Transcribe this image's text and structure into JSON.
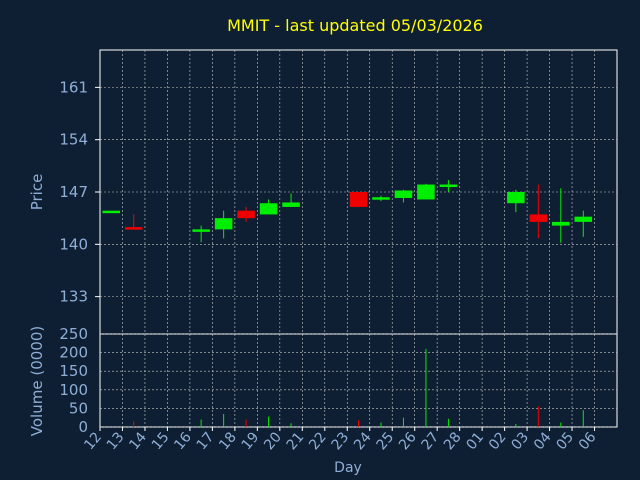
{
  "chart_data": [
    {
      "type": "candlestick",
      "title": "MMIT - last updated 05/03/2026",
      "ylabel": "Price",
      "ylim": [
        128,
        166
      ],
      "yticks": [
        133,
        140,
        147,
        154,
        161
      ],
      "grid": true,
      "colors": {
        "up": "#00ee00",
        "down": "#ee0000",
        "title": "#ffff00",
        "axis_text": "#8faed6",
        "grid": "#c8c8c8",
        "background": "#0f1f33"
      },
      "x": [
        "12",
        "13",
        "14",
        "15",
        "16",
        "17",
        "18",
        "19",
        "20",
        "21",
        "22",
        "23",
        "24",
        "25",
        "26",
        "27",
        "28",
        "01",
        "02",
        "03",
        "04",
        "05",
        "06"
      ],
      "candles": [
        {
          "x": "12",
          "open": 144.5,
          "high": 144.5,
          "low": 144.5,
          "close": 144.5,
          "dir": "up"
        },
        {
          "x": "13",
          "open": 142.3,
          "high": 144.0,
          "low": 142.0,
          "close": 142.0,
          "dir": "down"
        },
        {
          "x": "16",
          "open": 141.7,
          "high": 142.5,
          "low": 140.3,
          "close": 142.0,
          "dir": "up"
        },
        {
          "x": "17",
          "open": 142.0,
          "high": 144.5,
          "low": 140.8,
          "close": 143.5,
          "dir": "up"
        },
        {
          "x": "18",
          "open": 144.5,
          "high": 145.0,
          "low": 143.0,
          "close": 143.5,
          "dir": "down"
        },
        {
          "x": "19",
          "open": 144.0,
          "high": 146.0,
          "low": 144.0,
          "close": 145.5,
          "dir": "up"
        },
        {
          "x": "20",
          "open": 145.0,
          "high": 146.8,
          "low": 145.0,
          "close": 145.6,
          "dir": "up"
        },
        {
          "x": "23",
          "open": 147.0,
          "high": 147.0,
          "low": 145.0,
          "close": 145.0,
          "dir": "down"
        },
        {
          "x": "24",
          "open": 146.0,
          "high": 146.5,
          "low": 145.8,
          "close": 146.3,
          "dir": "up"
        },
        {
          "x": "25",
          "open": 146.2,
          "high": 147.3,
          "low": 145.6,
          "close": 147.2,
          "dir": "up"
        },
        {
          "x": "26",
          "open": 146.0,
          "high": 148.1,
          "low": 146.0,
          "close": 148.0,
          "dir": "up"
        },
        {
          "x": "27",
          "open": 147.8,
          "high": 148.6,
          "low": 147.0,
          "close": 148.0,
          "dir": "up"
        },
        {
          "x": "02",
          "open": 145.5,
          "high": 147.3,
          "low": 144.3,
          "close": 147.0,
          "dir": "up"
        },
        {
          "x": "03",
          "open": 144.0,
          "high": 148.0,
          "low": 140.8,
          "close": 143.0,
          "dir": "down"
        },
        {
          "x": "04",
          "open": 142.5,
          "high": 147.5,
          "low": 140.2,
          "close": 143.0,
          "dir": "up"
        },
        {
          "x": "05",
          "open": 143.0,
          "high": 144.5,
          "low": 141.0,
          "close": 143.7,
          "dir": "up"
        }
      ]
    },
    {
      "type": "bar",
      "ylabel": "Volume (0000)",
      "xlabel": "Day",
      "ylim": [
        0,
        250
      ],
      "yticks": [
        0,
        50,
        100,
        150,
        200,
        250
      ],
      "grid": true,
      "categories": [
        "12",
        "13",
        "14",
        "15",
        "16",
        "17",
        "18",
        "19",
        "20",
        "21",
        "22",
        "23",
        "24",
        "25",
        "26",
        "27",
        "28",
        "01",
        "02",
        "03",
        "04",
        "05",
        "06"
      ],
      "bars": [
        {
          "x": "13",
          "value": 15,
          "dir": "down"
        },
        {
          "x": "16",
          "value": 20,
          "dir": "up"
        },
        {
          "x": "17",
          "value": 35,
          "dir": "up"
        },
        {
          "x": "18",
          "value": 20,
          "dir": "down"
        },
        {
          "x": "19",
          "value": 28,
          "dir": "up"
        },
        {
          "x": "20",
          "value": 10,
          "dir": "up"
        },
        {
          "x": "23",
          "value": 18,
          "dir": "down"
        },
        {
          "x": "24",
          "value": 12,
          "dir": "up"
        },
        {
          "x": "25",
          "value": 25,
          "dir": "up"
        },
        {
          "x": "26",
          "value": 210,
          "dir": "up"
        },
        {
          "x": "27",
          "value": 22,
          "dir": "up"
        },
        {
          "x": "02",
          "value": 8,
          "dir": "up"
        },
        {
          "x": "03",
          "value": 55,
          "dir": "down"
        },
        {
          "x": "04",
          "value": 12,
          "dir": "up"
        },
        {
          "x": "05",
          "value": 45,
          "dir": "up"
        }
      ]
    }
  ]
}
